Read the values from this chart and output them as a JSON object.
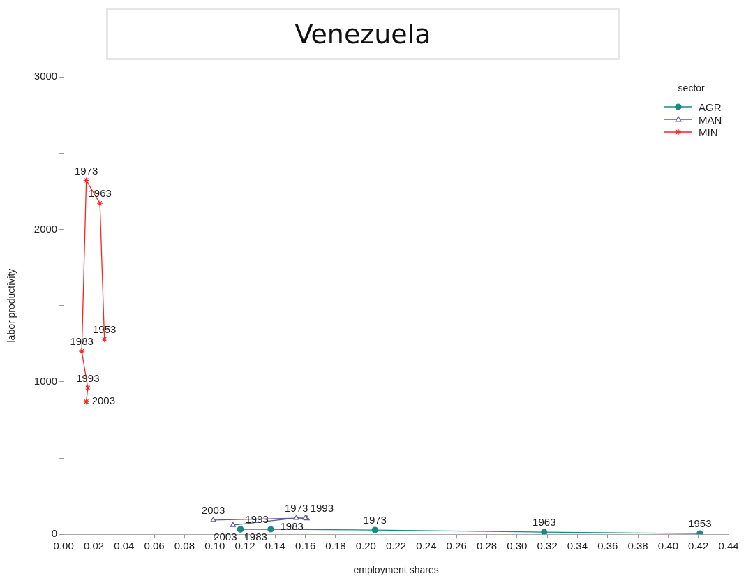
{
  "chart_data": {
    "type": "line",
    "title": "Venezuela",
    "xlabel": "employment shares",
    "ylabel": "labor productivity",
    "legend_title": "sector",
    "legend": "top right",
    "grid": false,
    "xlim": [
      0,
      0.44
    ],
    "xticks": [
      {
        "value": 0,
        "label": "0.00"
      },
      {
        "value": 0.02,
        "label": "0.02"
      },
      {
        "value": 0.04,
        "label": "0.04"
      },
      {
        "value": 0.06,
        "label": "0.06"
      },
      {
        "value": 0.08,
        "label": "0.08"
      },
      {
        "value": 0.1,
        "label": "0.10"
      },
      {
        "value": 0.12,
        "label": "0.12"
      },
      {
        "value": 0.14,
        "label": "0.14"
      },
      {
        "value": 0.16,
        "label": "0.16"
      },
      {
        "value": 0.18,
        "label": "0.18"
      },
      {
        "value": 0.2,
        "label": "0.20"
      },
      {
        "value": 0.22,
        "label": "0.22"
      },
      {
        "value": 0.24,
        "label": "0.24"
      },
      {
        "value": 0.26,
        "label": "0.26"
      },
      {
        "value": 0.28,
        "label": "0.28"
      },
      {
        "value": 0.3,
        "label": "0.30"
      },
      {
        "value": 0.32,
        "label": "0.32"
      },
      {
        "value": 0.34,
        "label": "0.34"
      },
      {
        "value": 0.36,
        "label": "0.36"
      },
      {
        "value": 0.38,
        "label": "0.38"
      },
      {
        "value": 0.4,
        "label": "0.40"
      },
      {
        "value": 0.42,
        "label": "0.42"
      },
      {
        "value": 0.44,
        "label": "0.44"
      }
    ],
    "ylim": [
      0,
      3000
    ],
    "yticks": [
      0,
      {
        "value": 500,
        "label": null
      },
      1000,
      {
        "value": 1500,
        "label": null
      },
      2000,
      {
        "value": 2500,
        "label": null
      },
      3000
    ],
    "series": [
      {
        "name": "AGR",
        "color": "#1a8a80",
        "marker": "circle",
        "x": [
          0.421,
          0.318,
          0.206,
          0.137,
          0.117,
          0.117
        ],
        "values": [
          5,
          14,
          28,
          33,
          33,
          33
        ]
      },
      {
        "name": "MAN",
        "color": "#5a5a9a",
        "marker": "triangle",
        "x": [
          0.112,
          0.154,
          0.161,
          0.16,
          0.099
        ],
        "values": [
          60,
          107,
          103,
          107,
          93
        ]
      },
      {
        "name": "MIN",
        "color": "#ff2020",
        "marker": "cross",
        "x": [
          0.027,
          0.024,
          0.015,
          0.012,
          0.016,
          0.015
        ],
        "values": [
          1280,
          2170,
          2320,
          1200,
          960,
          870
        ]
      }
    ],
    "annotations": [
      {
        "text": "1973",
        "x": 0.015,
        "y": 2320
      },
      {
        "text": "1963",
        "x": 0.024,
        "y": 2170
      },
      {
        "text": "1953",
        "x": 0.027,
        "y": 1280
      },
      {
        "text": "1983",
        "x": 0.012,
        "y": 1200
      },
      {
        "text": "1993",
        "x": 0.016,
        "y": 960
      },
      {
        "text": "2003",
        "x": 0.015,
        "y": 870
      },
      {
        "text": "2003",
        "x": 0.099,
        "y": 93
      },
      {
        "text": "1973",
        "x": 0.154,
        "y": 107
      },
      {
        "text": "1993",
        "x": 0.16,
        "y": 107
      },
      {
        "text": "1983",
        "x": 0.161,
        "y": 103
      },
      {
        "text": "1993",
        "x": 0.117,
        "y": 33
      },
      {
        "text": "2003",
        "x": 0.117,
        "y": 33
      },
      {
        "text": "1983",
        "x": 0.137,
        "y": 33
      },
      {
        "text": "1973",
        "x": 0.206,
        "y": 28
      },
      {
        "text": "1963",
        "x": 0.318,
        "y": 14
      },
      {
        "text": "1953",
        "x": 0.421,
        "y": 5
      }
    ]
  }
}
